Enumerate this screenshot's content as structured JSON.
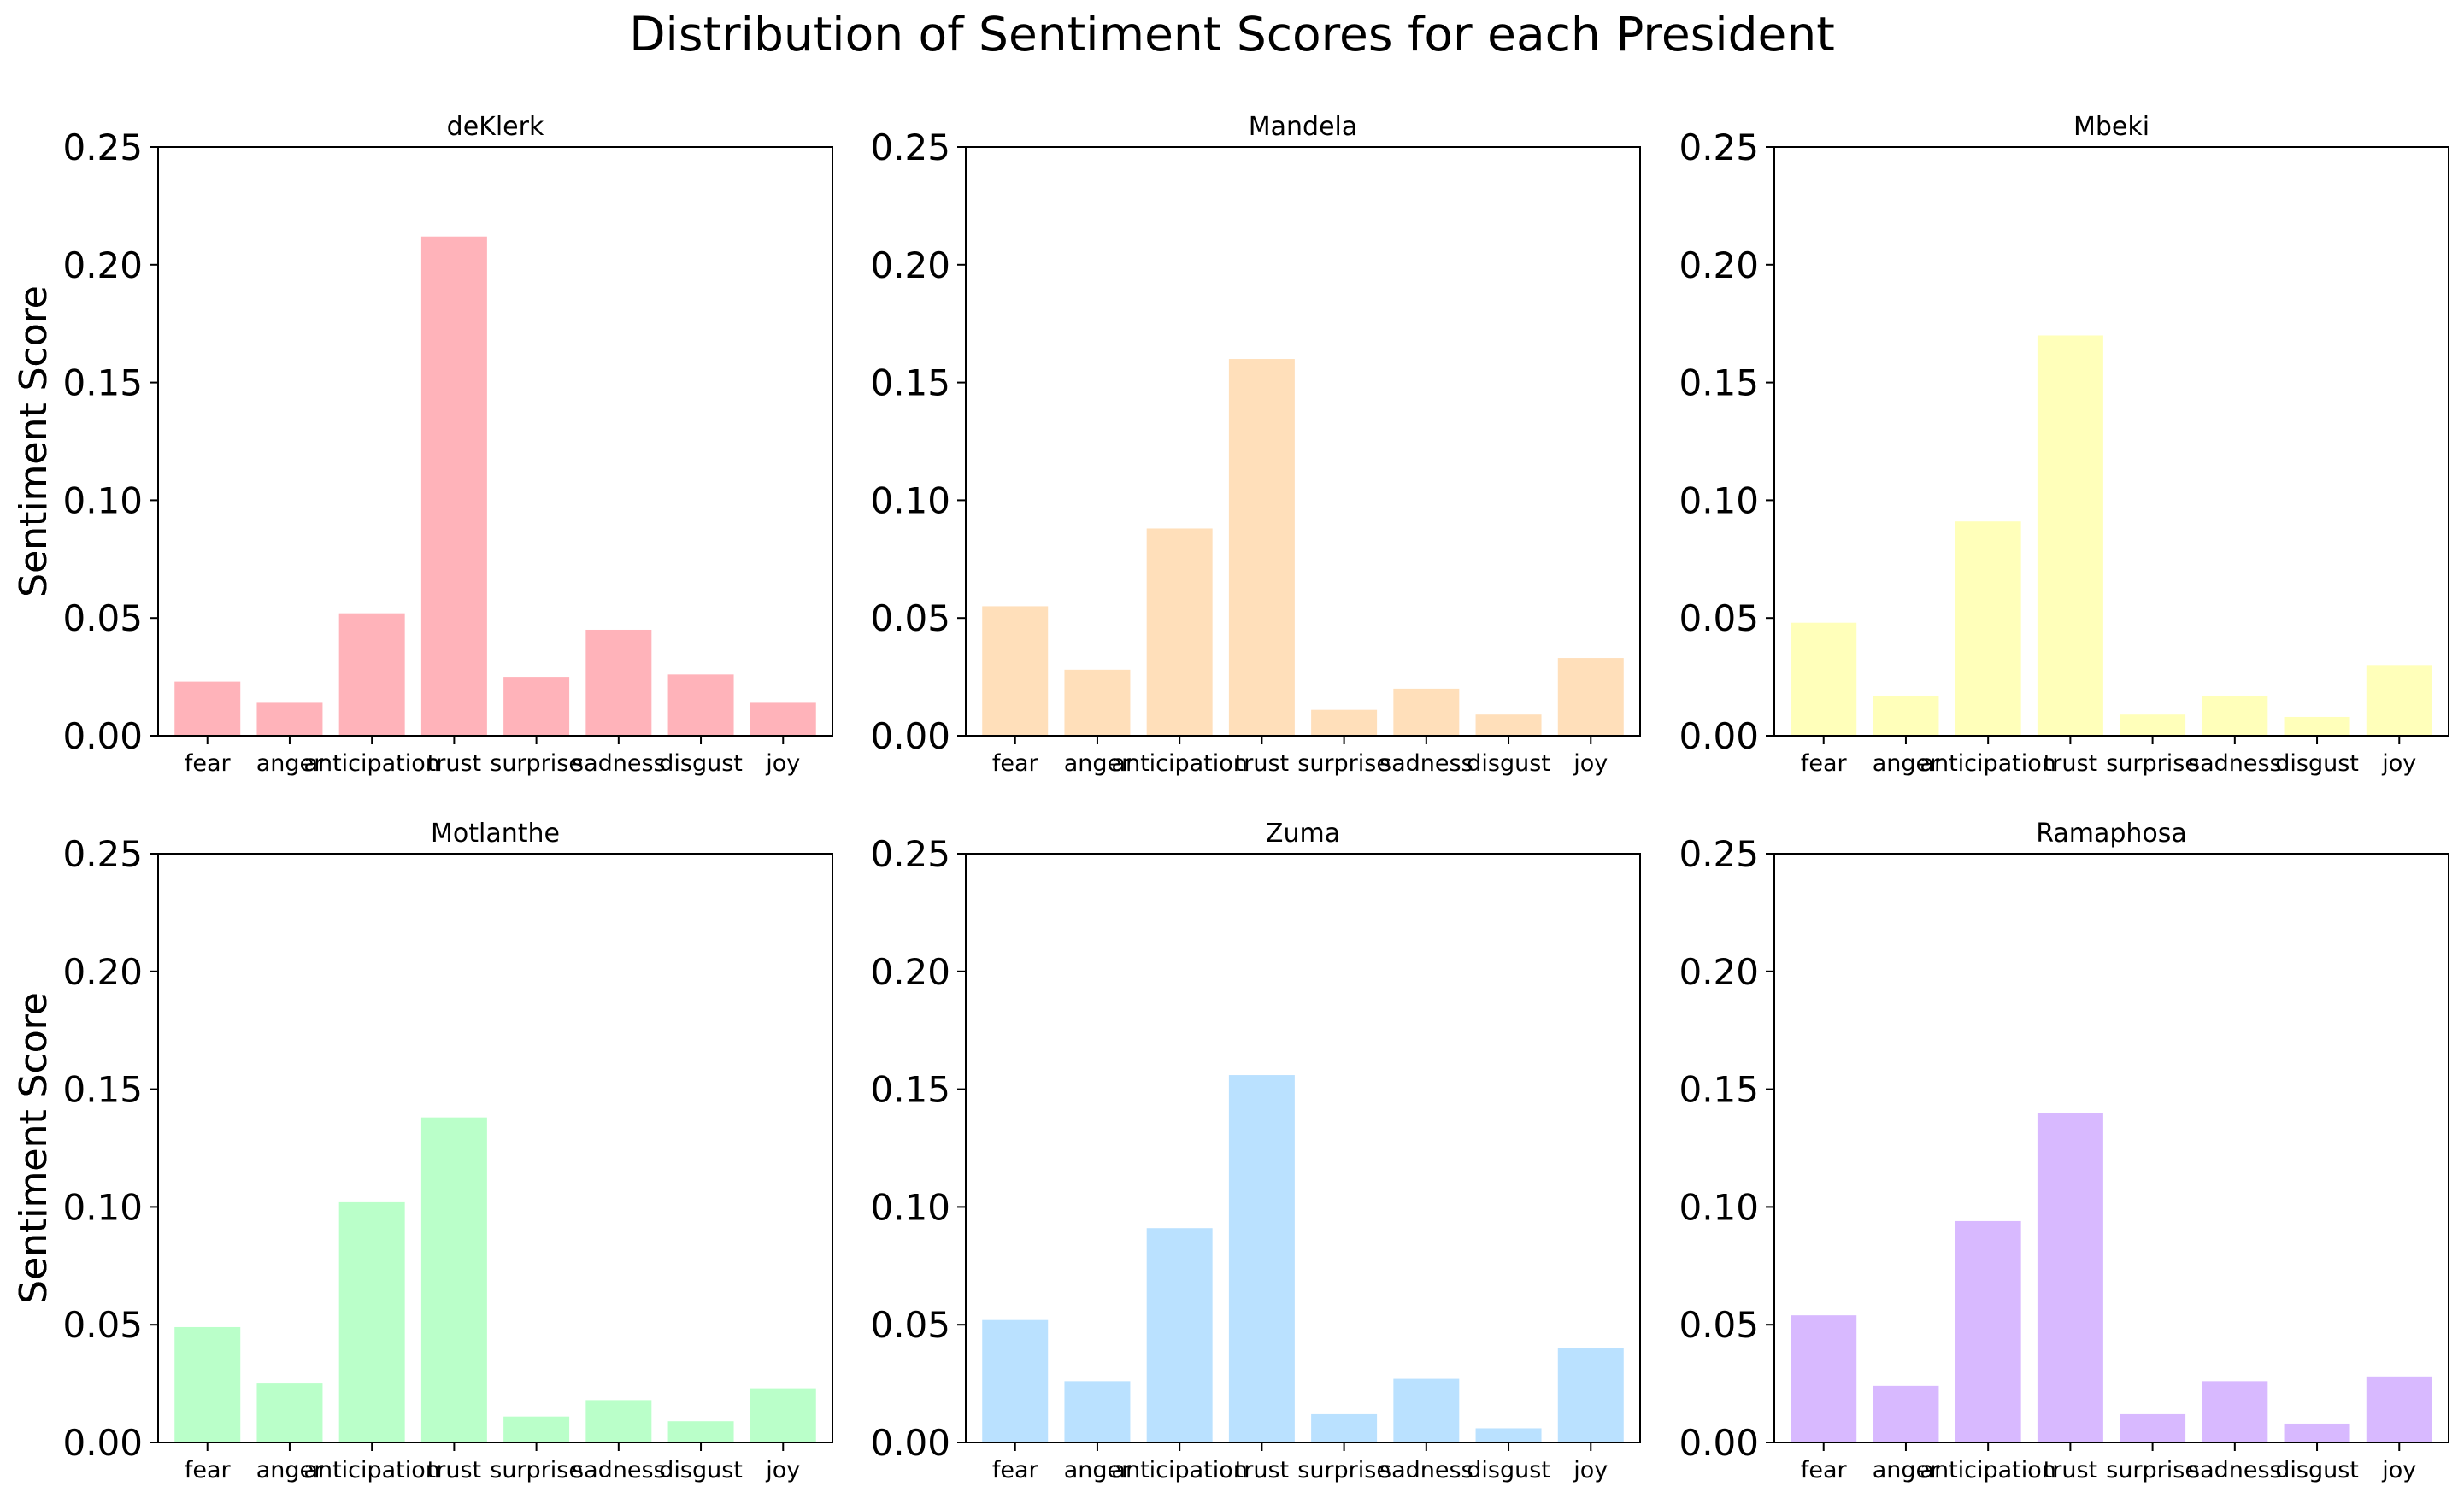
{
  "title": "Distribution of Sentiment Scores for each President",
  "chart_data": [
    {
      "type": "bar",
      "title": "deKlerk",
      "ylabel": "Sentiment Score",
      "ylim": [
        0,
        0.25
      ],
      "yticks": [
        "0.00",
        "0.05",
        "0.10",
        "0.15",
        "0.20",
        "0.25"
      ],
      "categories": [
        "fear",
        "anger",
        "anticipation",
        "trust",
        "surprise",
        "sadness",
        "disgust",
        "joy"
      ],
      "values": [
        0.023,
        0.014,
        0.052,
        0.212,
        0.025,
        0.045,
        0.026,
        0.014
      ],
      "color": "#ffb3ba"
    },
    {
      "type": "bar",
      "title": "Mandela",
      "ylabel": "Sentiment Score",
      "ylim": [
        0,
        0.25
      ],
      "yticks": [
        "0.00",
        "0.05",
        "0.10",
        "0.15",
        "0.20",
        "0.25"
      ],
      "categories": [
        "fear",
        "anger",
        "anticipation",
        "trust",
        "surprise",
        "sadness",
        "disgust",
        "joy"
      ],
      "values": [
        0.055,
        0.028,
        0.088,
        0.16,
        0.011,
        0.02,
        0.009,
        0.033
      ],
      "color": "#ffdfba"
    },
    {
      "type": "bar",
      "title": "Mbeki",
      "ylabel": "Sentiment Score",
      "ylim": [
        0,
        0.25
      ],
      "yticks": [
        "0.00",
        "0.05",
        "0.10",
        "0.15",
        "0.20",
        "0.25"
      ],
      "categories": [
        "fear",
        "anger",
        "anticipation",
        "trust",
        "surprise",
        "sadness",
        "disgust",
        "joy"
      ],
      "values": [
        0.048,
        0.017,
        0.091,
        0.17,
        0.009,
        0.017,
        0.008,
        0.03
      ],
      "color": "#ffffba"
    },
    {
      "type": "bar",
      "title": "Motlanthe",
      "ylabel": "Sentiment Score",
      "ylim": [
        0,
        0.25
      ],
      "yticks": [
        "0.00",
        "0.05",
        "0.10",
        "0.15",
        "0.20",
        "0.25"
      ],
      "categories": [
        "fear",
        "anger",
        "anticipation",
        "trust",
        "surprise",
        "sadness",
        "disgust",
        "joy"
      ],
      "values": [
        0.049,
        0.025,
        0.102,
        0.138,
        0.011,
        0.018,
        0.009,
        0.023
      ],
      "color": "#baffc9"
    },
    {
      "type": "bar",
      "title": "Zuma",
      "ylabel": "Sentiment Score",
      "ylim": [
        0,
        0.25
      ],
      "yticks": [
        "0.00",
        "0.05",
        "0.10",
        "0.15",
        "0.20",
        "0.25"
      ],
      "categories": [
        "fear",
        "anger",
        "anticipation",
        "trust",
        "surprise",
        "sadness",
        "disgust",
        "joy"
      ],
      "values": [
        0.052,
        0.026,
        0.091,
        0.156,
        0.012,
        0.027,
        0.006,
        0.04
      ],
      "color": "#bae1ff"
    },
    {
      "type": "bar",
      "title": "Ramaphosa",
      "ylabel": "Sentiment Score",
      "ylim": [
        0,
        0.25
      ],
      "yticks": [
        "0.00",
        "0.05",
        "0.10",
        "0.15",
        "0.20",
        "0.25"
      ],
      "categories": [
        "fear",
        "anger",
        "anticipation",
        "trust",
        "surprise",
        "sadness",
        "disgust",
        "joy"
      ],
      "values": [
        0.054,
        0.024,
        0.094,
        0.14,
        0.012,
        0.026,
        0.008,
        0.028
      ],
      "color": "#d8b9ff"
    }
  ]
}
